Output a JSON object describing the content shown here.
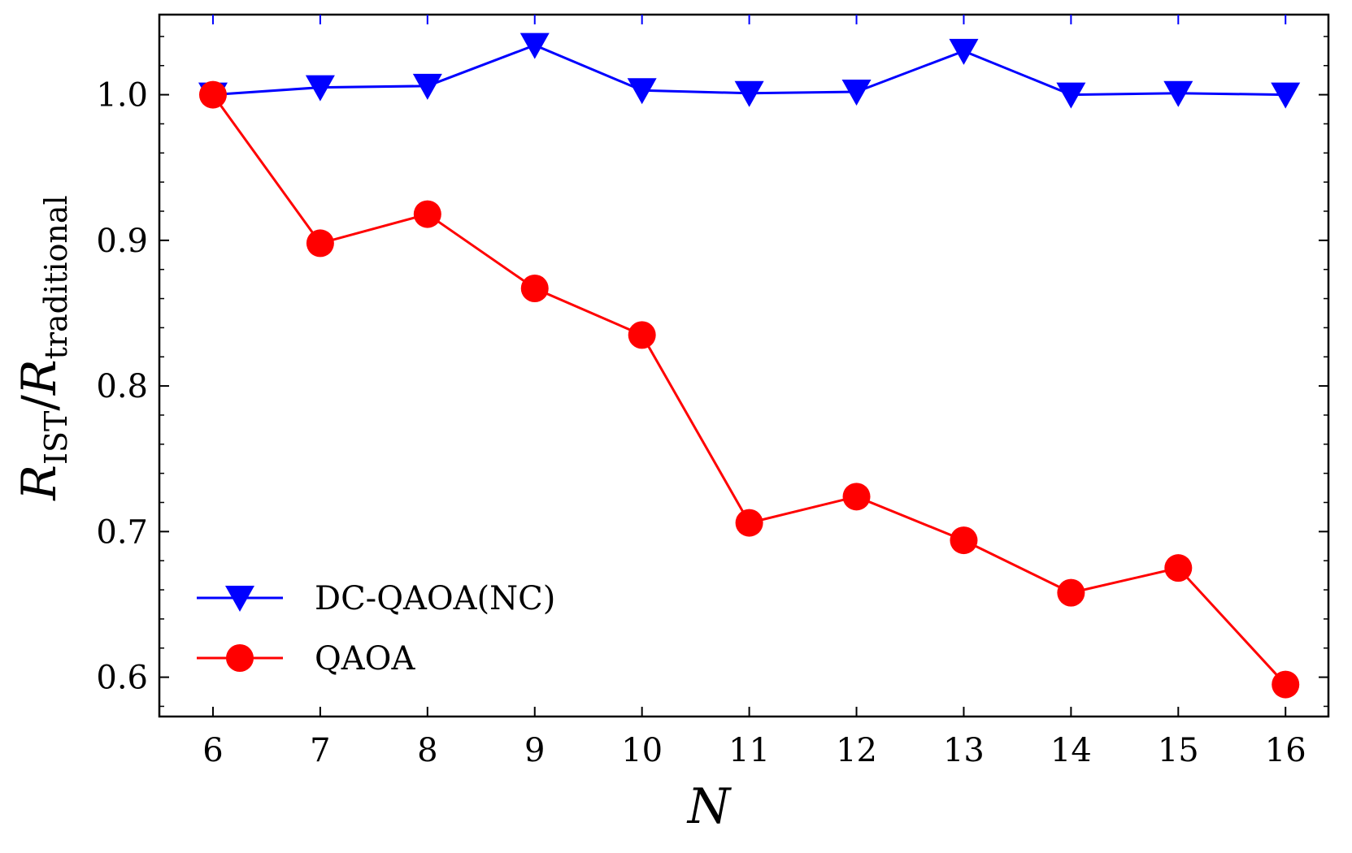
{
  "chart_data": {
    "type": "line",
    "title": "",
    "xlabel": "N",
    "ylabel": {
      "main": "R",
      "sub1": "IST",
      "slash": "/",
      "main2": "R",
      "sub2": "traditional"
    },
    "x": [
      6,
      7,
      8,
      9,
      10,
      11,
      12,
      13,
      14,
      15,
      16
    ],
    "xticks": [
      "6",
      "7",
      "8",
      "9",
      "10",
      "11",
      "12",
      "13",
      "14",
      "15",
      "16"
    ],
    "xlim": [
      5.5,
      16.4
    ],
    "ylim": [
      0.573,
      1.055
    ],
    "yticks": [
      0.6,
      0.7,
      0.8,
      0.9,
      1.0
    ],
    "ytick_labels": [
      "0.6",
      "0.7",
      "0.8",
      "0.9",
      "1.0"
    ],
    "grid": false,
    "legend_position": "lower-left",
    "series": [
      {
        "name": "DC-QAOA(NC)",
        "color": "#0000ff",
        "marker": "triangle-down",
        "values": [
          1.0,
          1.005,
          1.006,
          1.034,
          1.003,
          1.001,
          1.002,
          1.03,
          1.0,
          1.001,
          1.0
        ]
      },
      {
        "name": "QAOA",
        "color": "#ff0000",
        "marker": "circle",
        "values": [
          1.0,
          0.898,
          0.918,
          0.867,
          0.835,
          0.706,
          0.724,
          0.694,
          0.658,
          0.675,
          0.595
        ]
      }
    ]
  }
}
